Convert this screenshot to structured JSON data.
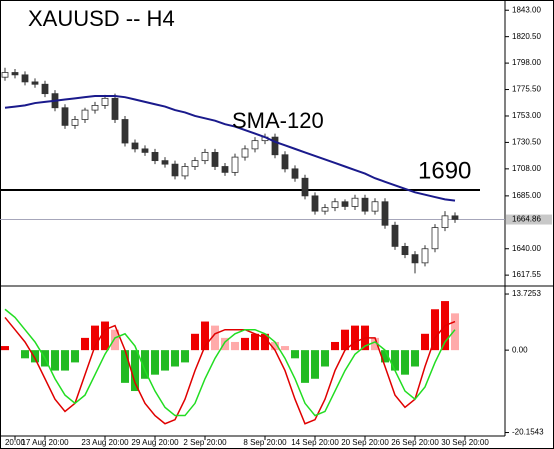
{
  "chart_data": [
    {
      "type": "candlestick",
      "title": "XAUUSD -- H4",
      "open": [
        1786,
        1790,
        1788,
        1782,
        1780,
        1772,
        1760,
        1745,
        1750,
        1758,
        1762,
        1768,
        1750,
        1730,
        1725,
        1722,
        1715,
        1712,
        1702,
        1710,
        1715,
        1722,
        1710,
        1705,
        1718,
        1725,
        1732,
        1735,
        1720,
        1708,
        1700,
        1685,
        1672,
        1675,
        1680,
        1676,
        1683,
        1672,
        1680,
        1660,
        1642,
        1635,
        1628,
        1640,
        1658,
        1668
      ],
      "high": [
        1794,
        1793,
        1791,
        1785,
        1783,
        1775,
        1763,
        1753,
        1760,
        1765,
        1771,
        1772,
        1753,
        1733,
        1728,
        1725,
        1718,
        1715,
        1713,
        1718,
        1725,
        1725,
        1713,
        1721,
        1728,
        1735,
        1738,
        1738,
        1723,
        1711,
        1703,
        1688,
        1678,
        1683,
        1682,
        1686,
        1686,
        1683,
        1683,
        1663,
        1645,
        1638,
        1643,
        1661,
        1672,
        1671
      ],
      "low": [
        1783,
        1785,
        1779,
        1777,
        1769,
        1757,
        1742,
        1742,
        1747,
        1755,
        1759,
        1747,
        1727,
        1722,
        1719,
        1712,
        1709,
        1699,
        1699,
        1707,
        1712,
        1707,
        1702,
        1702,
        1715,
        1722,
        1729,
        1717,
        1705,
        1697,
        1682,
        1669,
        1669,
        1672,
        1673,
        1673,
        1669,
        1669,
        1657,
        1639,
        1632,
        1619,
        1625,
        1637,
        1655,
        1662
      ],
      "close": [
        1790,
        1788,
        1782,
        1780,
        1772,
        1760,
        1745,
        1750,
        1758,
        1762,
        1768,
        1750,
        1730,
        1725,
        1722,
        1715,
        1712,
        1702,
        1710,
        1715,
        1722,
        1710,
        1705,
        1718,
        1725,
        1732,
        1735,
        1720,
        1708,
        1700,
        1685,
        1672,
        1675,
        1680,
        1676,
        1683,
        1672,
        1680,
        1660,
        1642,
        1635,
        1628,
        1640,
        1658,
        1668,
        1665
      ],
      "series": [
        {
          "name": "SMA-120",
          "color": "#1a1a8c",
          "values": [
            1760,
            1761,
            1762,
            1764,
            1765,
            1766,
            1767,
            1768,
            1769,
            1770,
            1770,
            1770,
            1769,
            1767,
            1765,
            1763,
            1761,
            1758,
            1756,
            1753,
            1751,
            1749,
            1746,
            1744,
            1741,
            1738,
            1735,
            1731,
            1728,
            1725,
            1722,
            1719,
            1716,
            1713,
            1710,
            1707,
            1704,
            1700,
            1697,
            1694,
            1691,
            1688,
            1686,
            1684,
            1682,
            1681
          ]
        }
      ],
      "level": 1690,
      "current_price": 1664.86,
      "ylim": [
        1610,
        1850
      ],
      "yticks": [
        {
          "value": 1843,
          "label": "1843.00"
        },
        {
          "value": 1820.5,
          "label": "1820.50"
        },
        {
          "value": 1798,
          "label": "1798.00"
        },
        {
          "value": 1775.5,
          "label": "1775.50"
        },
        {
          "value": 1753,
          "label": "1753.00"
        },
        {
          "value": 1730.5,
          "label": "1730.50"
        },
        {
          "value": 1708,
          "label": "1708.00"
        },
        {
          "value": 1685,
          "label": "1685.00"
        },
        {
          "value": 1640,
          "label": "1640.00"
        },
        1617.55
      ],
      "xticks": [
        {
          "value": 1,
          "label": "20:00"
        },
        {
          "value": 4,
          "label": "17 Aug 20:00"
        },
        {
          "value": 10,
          "label": "23 Aug 20:00"
        },
        {
          "value": 15,
          "label": "29 Aug 20:00"
        },
        {
          "value": 20,
          "label": "2 Sep 20:00"
        },
        {
          "value": 26,
          "label": "8 Sep 20:00"
        },
        {
          "value": 31,
          "label": "14 Sep 20:00"
        },
        {
          "value": 36,
          "label": "20 Sep 20:00"
        },
        {
          "value": 41,
          "label": "26 Sep 20:00"
        },
        {
          "value": 46,
          "label": "30 Sep 20:00"
        }
      ]
    },
    {
      "type": "oscillator",
      "values": [
        1,
        0,
        -2,
        -3,
        -4,
        -5,
        -5,
        -3,
        3,
        6,
        7,
        5,
        -8,
        -10,
        -7,
        -6,
        -5,
        -4,
        -3,
        4,
        7,
        6,
        3,
        2,
        3,
        4,
        4,
        2,
        1,
        -2,
        -8,
        -7,
        -4,
        2,
        5,
        6,
        6,
        3,
        -3,
        -5,
        -6,
        -4,
        4,
        10,
        12,
        9
      ],
      "series": [
        {
          "color": "#e00000",
          "values": [
            8,
            5,
            2,
            -2,
            -7,
            -12,
            -15,
            -13,
            -6,
            1,
            5,
            6,
            0,
            -8,
            -13,
            -16,
            -18,
            -17,
            -12,
            -5,
            1,
            4,
            5,
            5,
            5,
            4,
            3,
            0,
            -5,
            -12,
            -18,
            -17,
            -12,
            -5,
            0,
            2,
            3,
            3,
            -4,
            -11,
            -14,
            -12,
            -4,
            3,
            6,
            7
          ]
        },
        {
          "color": "#22dd22",
          "values": [
            10,
            8,
            5,
            2,
            -2,
            -7,
            -11,
            -13,
            -11,
            -6,
            -1,
            3,
            4,
            1,
            -5,
            -10,
            -14,
            -16,
            -16,
            -13,
            -7,
            -2,
            2,
            4,
            5,
            5,
            4,
            2,
            -2,
            -7,
            -13,
            -16,
            -15,
            -10,
            -5,
            -1,
            1,
            2,
            0,
            -5,
            -10,
            -12,
            -9,
            -3,
            2,
            5
          ]
        }
      ],
      "ylim": [
        -21,
        15.2
      ],
      "yticks": [
        13.7253,
        {
          "value": 0,
          "label": "0.00"
        },
        -20.1543
      ]
    }
  ]
}
